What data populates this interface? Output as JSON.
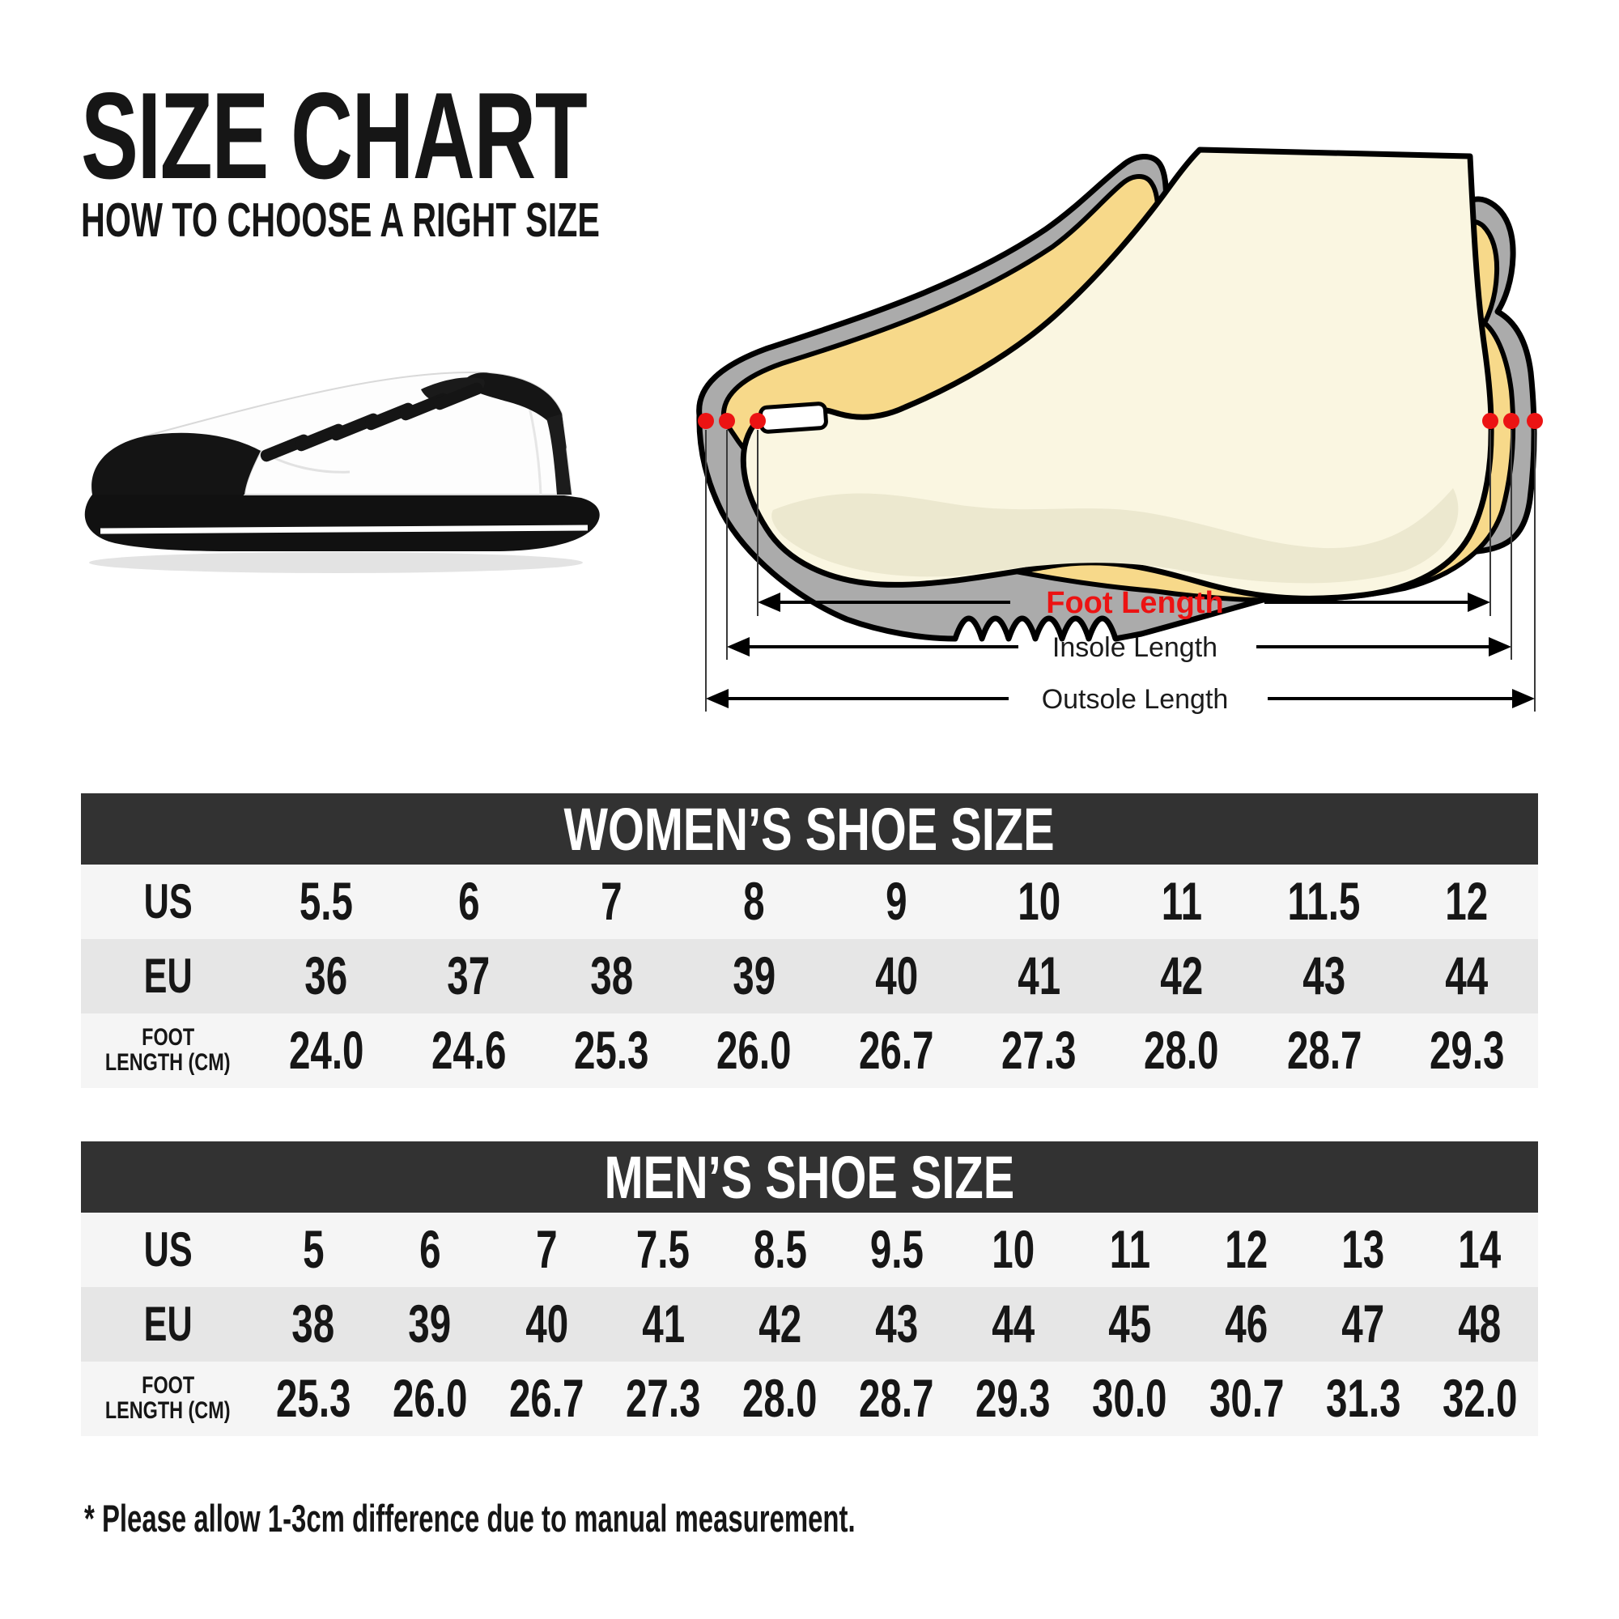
{
  "header": {
    "title": "SIZE CHART",
    "subtitle": "HOW TO CHOOSE A RIGHT SIZE"
  },
  "diagram": {
    "foot_length_label": "Foot Length",
    "insole_length_label": "Insole Length",
    "outsole_length_label": "Outsole Length"
  },
  "tables": [
    {
      "id": "women",
      "title": "WOMEN’S SHOE SIZE",
      "rows": [
        {
          "label_lines": [
            "US"
          ],
          "values": [
            "5.5",
            "6",
            "7",
            "8",
            "9",
            "10",
            "11",
            "11.5",
            "12"
          ]
        },
        {
          "label_lines": [
            "EU"
          ],
          "values": [
            "36",
            "37",
            "38",
            "39",
            "40",
            "41",
            "42",
            "43",
            "44"
          ]
        },
        {
          "label_lines": [
            "FOOT",
            "LENGTH (CM)"
          ],
          "values": [
            "24.0",
            "24.6",
            "25.3",
            "26.0",
            "26.7",
            "27.3",
            "28.0",
            "28.7",
            "29.3"
          ]
        }
      ]
    },
    {
      "id": "men",
      "title": "MEN’S SHOE SIZE",
      "rows": [
        {
          "label_lines": [
            "US"
          ],
          "values": [
            "5",
            "6",
            "7",
            "7.5",
            "8.5",
            "9.5",
            "10",
            "11",
            "12",
            "13",
            "14"
          ]
        },
        {
          "label_lines": [
            "EU"
          ],
          "values": [
            "38",
            "39",
            "40",
            "41",
            "42",
            "43",
            "44",
            "45",
            "46",
            "47",
            "48"
          ]
        },
        {
          "label_lines": [
            "FOOT",
            "LENGTH (CM)"
          ],
          "values": [
            "25.3",
            "26.0",
            "26.7",
            "27.3",
            "28.0",
            "28.7",
            "29.3",
            "30.0",
            "30.7",
            "31.3",
            "32.0"
          ]
        }
      ]
    }
  ],
  "footnote": "* Please allow 1-3cm difference due to manual measurement.",
  "colors": {
    "header_band": "#323232",
    "row_light": "#f5f5f5",
    "row_mid": "#e6e6e6",
    "accent_red": "#ec1313",
    "shoe_gray": "#ababab",
    "lining_yellow": "#f7d98a",
    "foot_cream": "#faf6e1",
    "foot_shade": "#ece8cf",
    "text": "#161616"
  }
}
